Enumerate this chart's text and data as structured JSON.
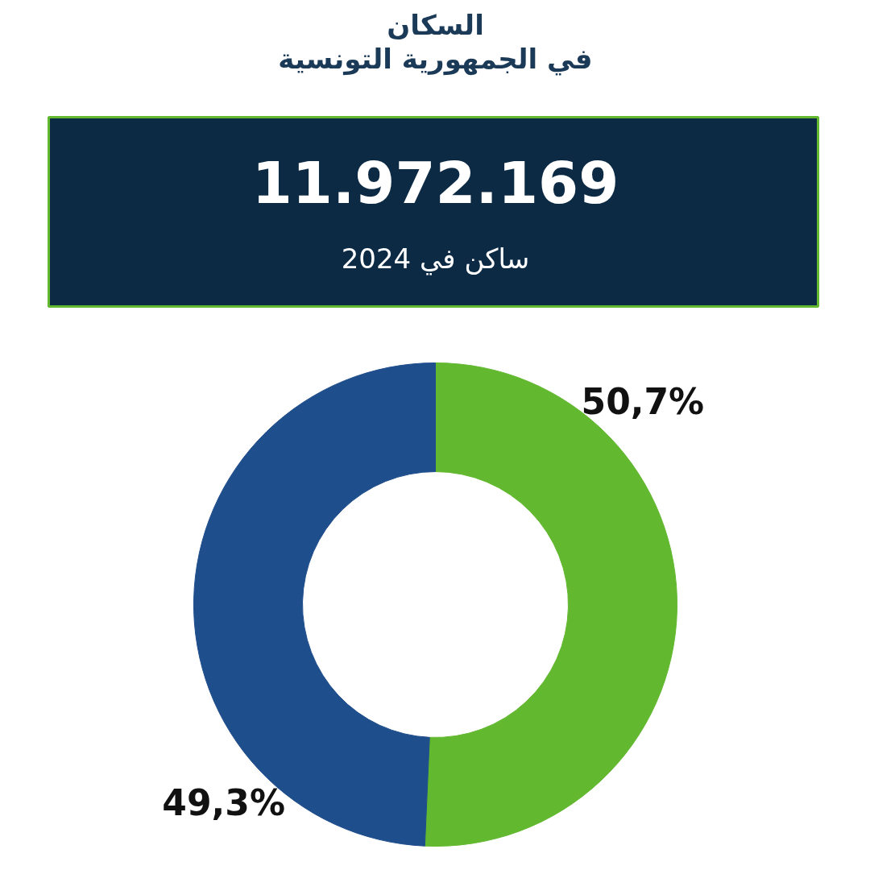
{
  "chart_data": {
    "type": "donut",
    "title": "السكان\nفي الجمهورية التونسية",
    "annotations": [
      "11.972.169",
      "ساكن في 2024"
    ],
    "categories": [
      null,
      null
    ],
    "values": [
      50.7,
      49.3
    ],
    "colors": [
      "#62b82f",
      "#1f4e8c"
    ],
    "value_labels": [
      "50,7%",
      "49,3%"
    ]
  }
}
